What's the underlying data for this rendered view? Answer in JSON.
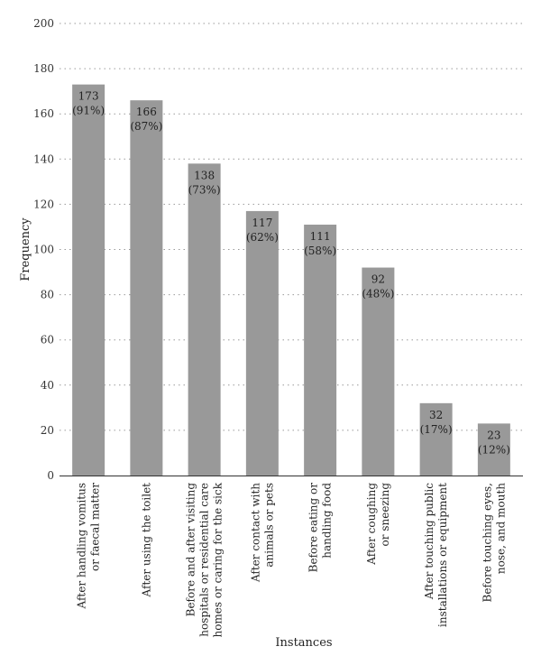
{
  "chart_data": {
    "type": "bar",
    "title": "",
    "xlabel": "Instances",
    "ylabel": "Frequency",
    "ylim": [
      0,
      200
    ],
    "yticks": [
      0,
      20,
      40,
      60,
      80,
      100,
      120,
      140,
      160,
      180,
      200
    ],
    "grid": true,
    "bar_color": "#999999",
    "categories": [
      [
        "After handling vomitus",
        "or faecal matter"
      ],
      [
        "After using the toilet"
      ],
      [
        "Before and after visiting",
        "hospitals or residential care",
        "homes or caring for the sick"
      ],
      [
        "After contact with",
        "animals or pets"
      ],
      [
        "Before eating or",
        "handling food"
      ],
      [
        "After coughing",
        "or sneezing"
      ],
      [
        "After touching public",
        "installations or equipment"
      ],
      [
        "Before touching eyes,",
        "nose, and mouth"
      ]
    ],
    "values": [
      173,
      166,
      138,
      117,
      111,
      92,
      32,
      23
    ],
    "data_labels": [
      [
        "173",
        "(91%)"
      ],
      [
        "166",
        "(87%)"
      ],
      [
        "138",
        "(73%)"
      ],
      [
        "117",
        "(62%)"
      ],
      [
        "111",
        "(58%)"
      ],
      [
        "92",
        "(48%)"
      ],
      [
        "32",
        "(17%)"
      ],
      [
        "23",
        "(12%)"
      ]
    ]
  }
}
